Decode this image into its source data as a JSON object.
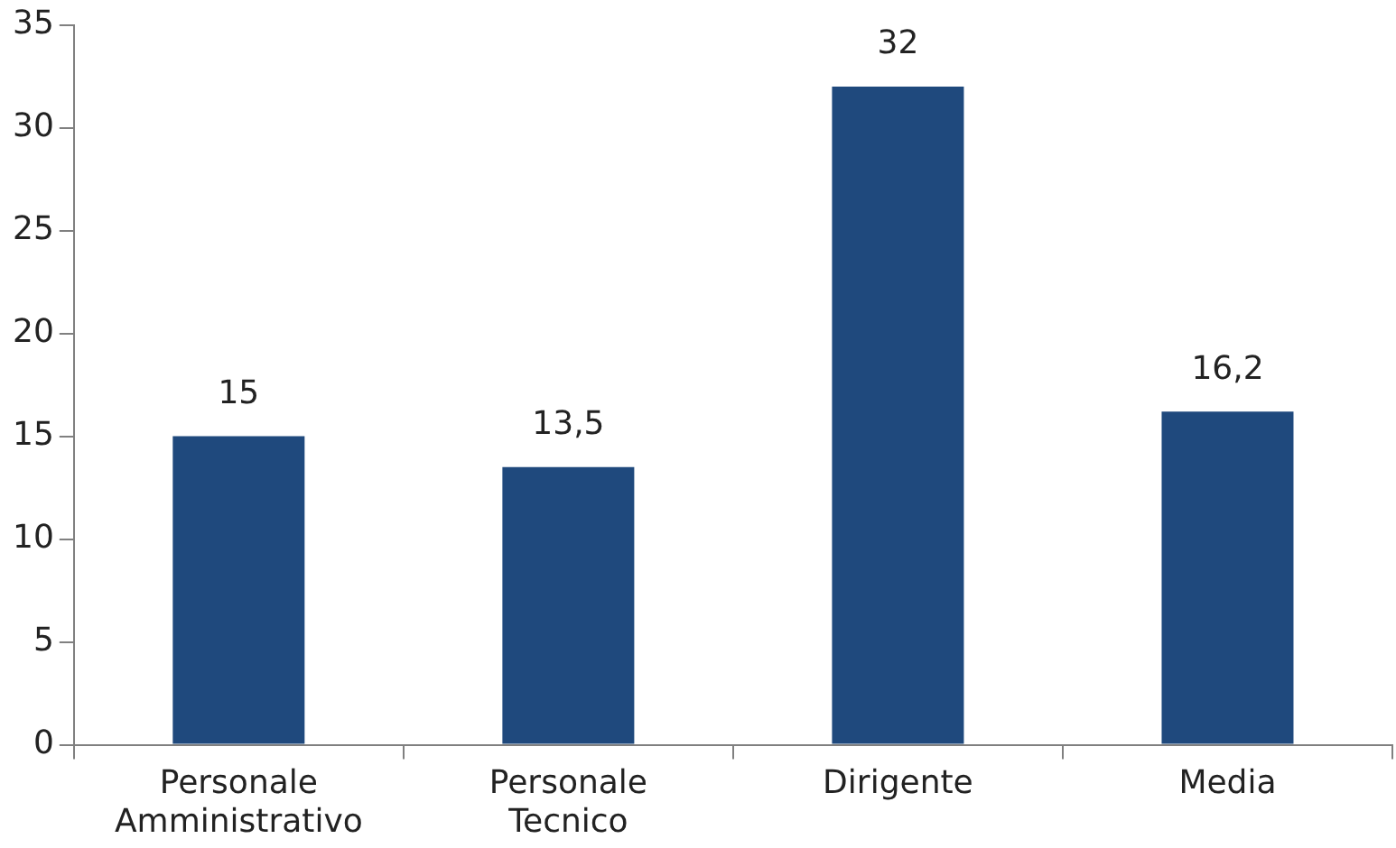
{
  "chart_data": {
    "type": "bar",
    "categories": [
      "Personale Amministrativo",
      "Personale Tecnico",
      "Dirigente",
      "Media"
    ],
    "values": [
      15,
      13.5,
      32,
      16.2
    ],
    "color": "#1f497d",
    "value_labels": [
      "15",
      "13,5",
      "32",
      "16,2"
    ],
    "ylim": [
      0,
      35
    ],
    "yticks": [
      0,
      5,
      10,
      15,
      20,
      25,
      30,
      35
    ],
    "legend": false
  }
}
